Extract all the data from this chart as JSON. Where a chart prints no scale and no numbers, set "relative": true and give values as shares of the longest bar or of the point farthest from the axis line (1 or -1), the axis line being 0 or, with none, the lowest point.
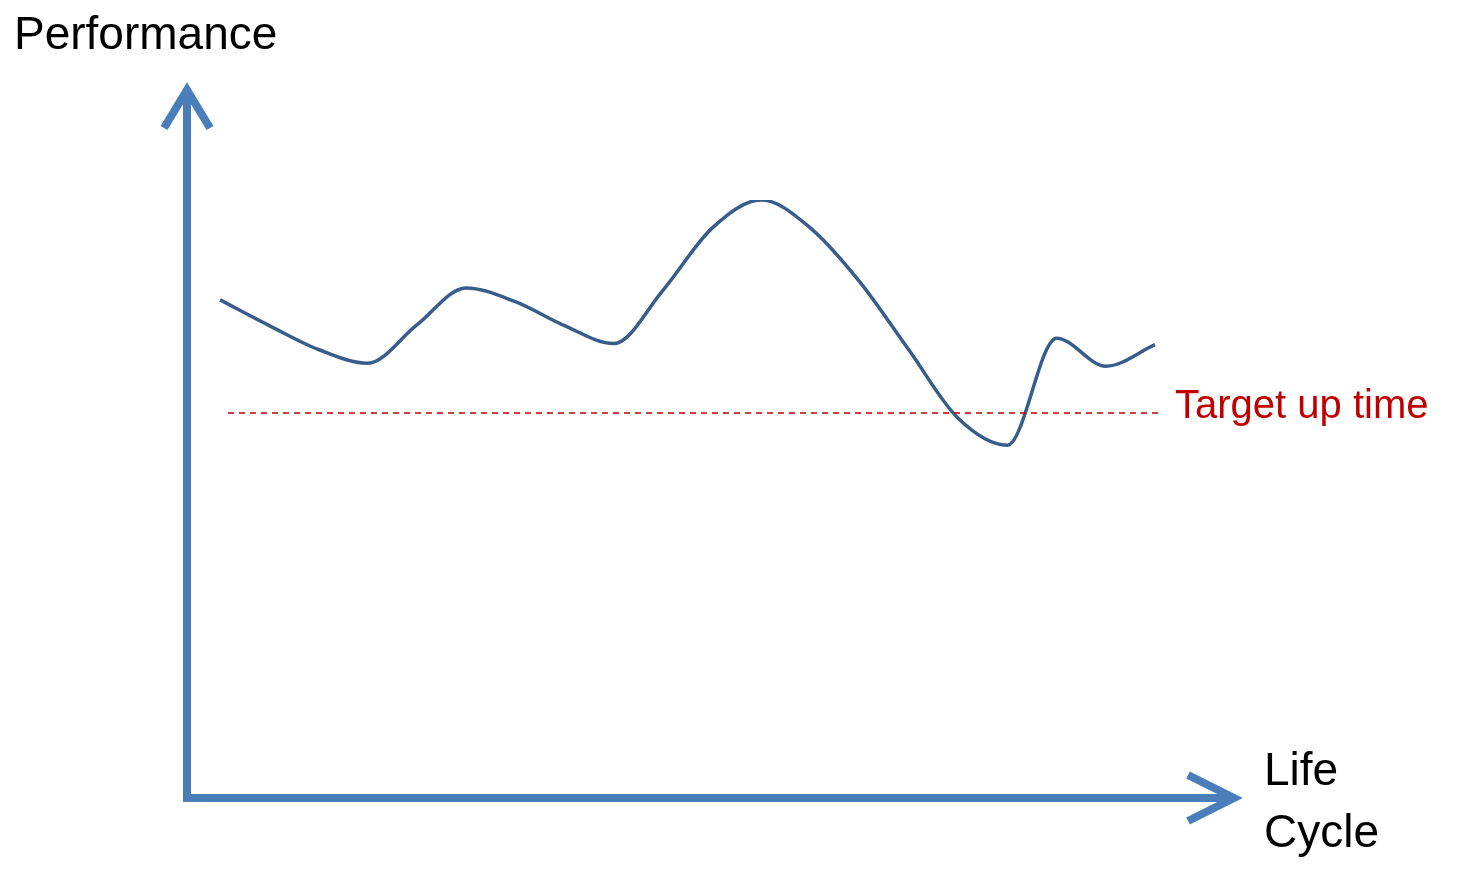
{
  "chart_data": {
    "type": "line",
    "relative": true,
    "ylabel": "Performance",
    "xlabel": "Life Cycle",
    "categories": [
      null,
      null,
      null,
      null,
      null,
      null,
      null,
      null,
      null,
      null,
      null,
      null,
      null,
      null,
      null,
      null,
      null,
      null,
      null,
      null
    ],
    "series": [
      {
        "color": "#385d8a",
        "values": [
          0.833,
          0.79,
          0.75,
          0.727,
          0.791,
          0.853,
          0.83,
          0.79,
          0.76,
          0.849,
          0.953,
          1,
          0.953,
          0.863,
          0.749,
          0.635,
          0.59,
          0.769,
          0.722,
          0.758
        ]
      }
    ],
    "ref_lines": [
      {
        "axis": "y",
        "value": 0.644,
        "label": "Target up time",
        "color": "#c00000",
        "line_style": "dashed"
      }
    ],
    "legend": false,
    "marker": "none",
    "line_style": "solid"
  }
}
